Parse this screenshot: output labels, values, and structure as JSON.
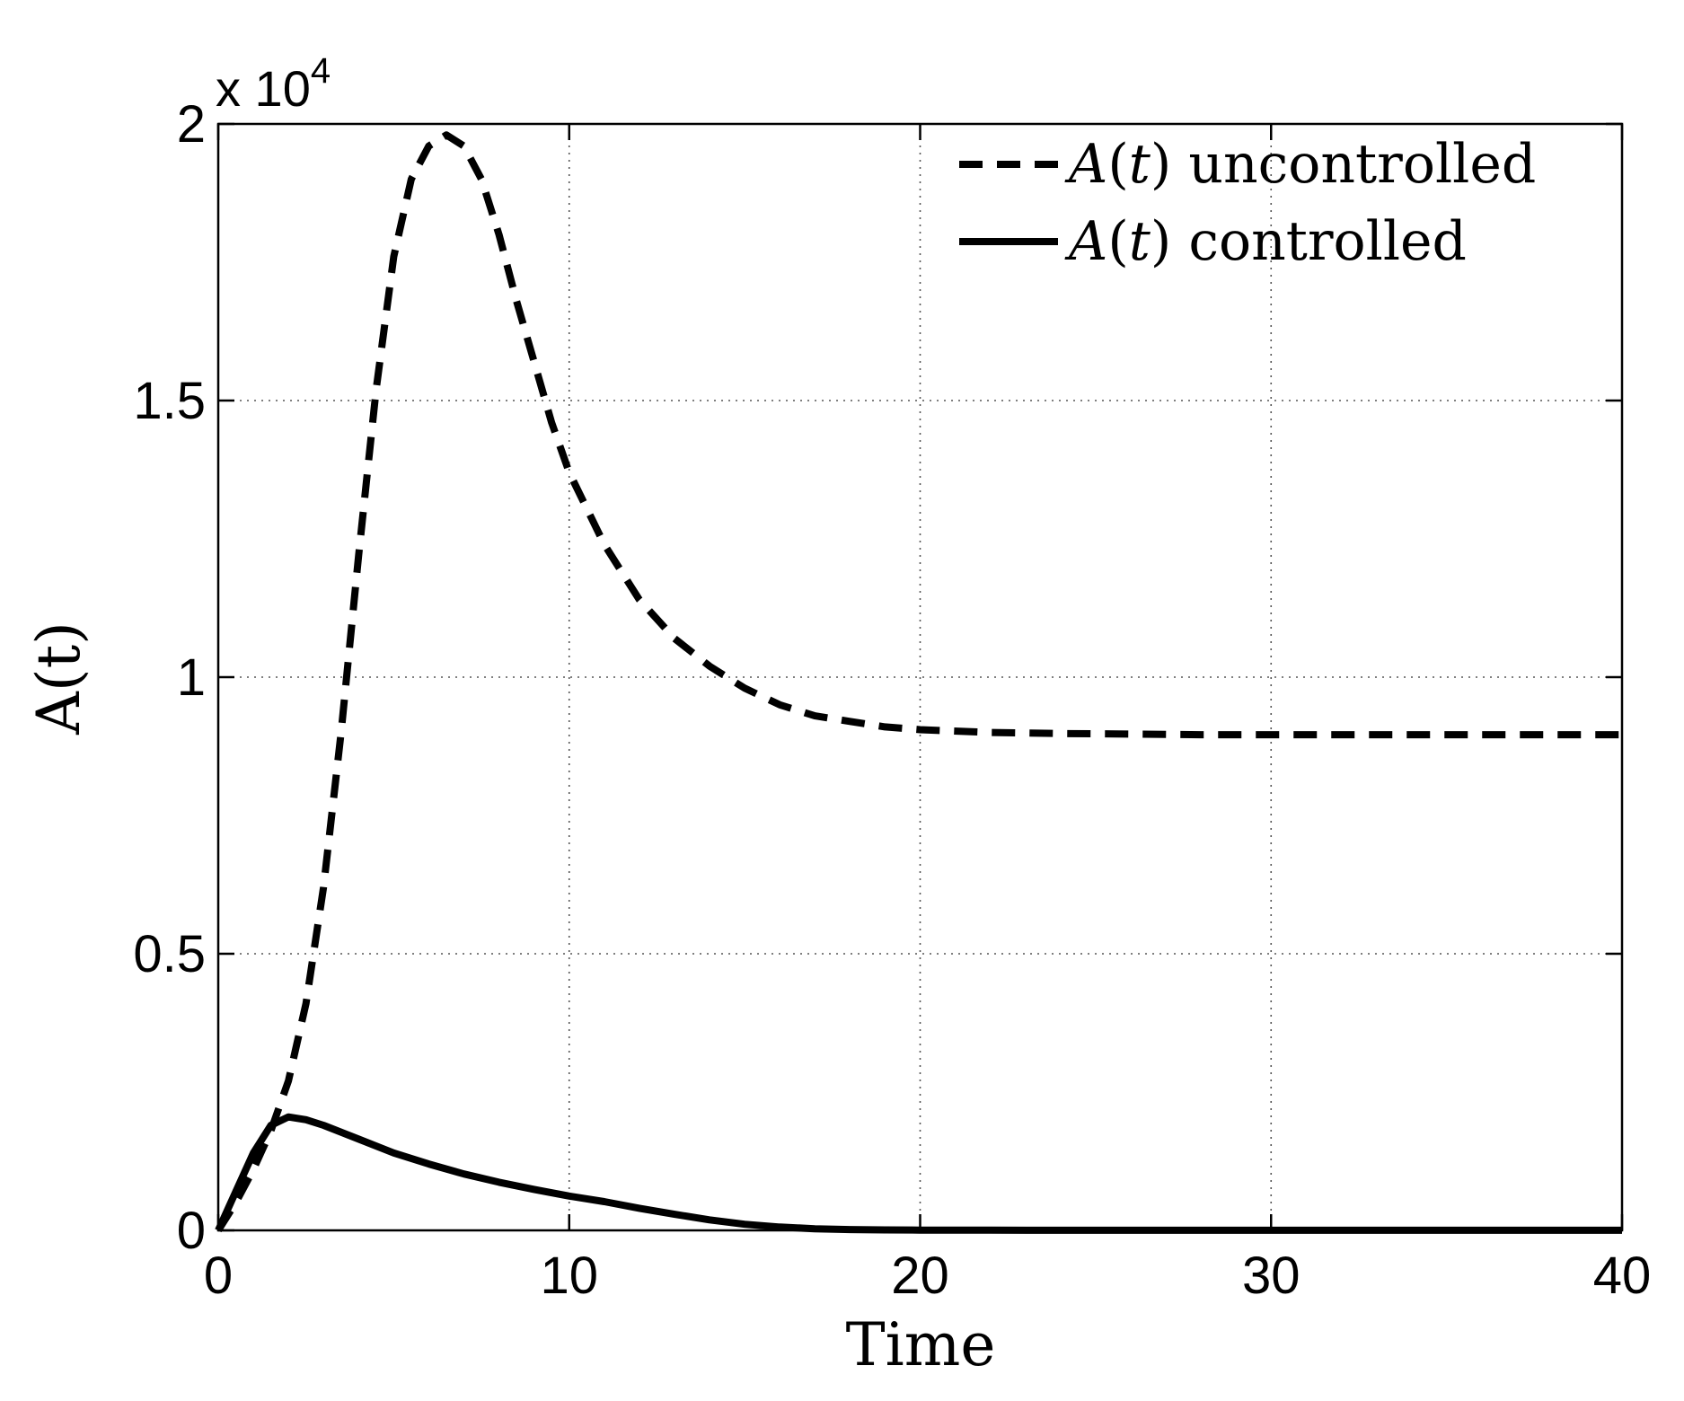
{
  "chart_data": {
    "type": "line",
    "xlabel": "Time",
    "ylabel": "A(t)",
    "xlim": [
      0,
      40
    ],
    "ylim": [
      0,
      20000
    ],
    "y_scale_note": "x 10",
    "y_scale_exponent": "4",
    "x_ticks": [
      0,
      10,
      20,
      30,
      40
    ],
    "x_tick_labels": [
      "0",
      "10",
      "20",
      "30",
      "40"
    ],
    "y_ticks": [
      0,
      5000,
      10000,
      15000,
      20000
    ],
    "y_tick_labels": [
      "0",
      "0.5",
      "1",
      "1.5",
      "2"
    ],
    "grid": true,
    "legend_position": "top-right",
    "series": [
      {
        "name": "A(t) uncontrolled",
        "name_math": "A",
        "name_arg": "t",
        "name_suffix": "uncontrolled",
        "style": "dashed",
        "color": "#000000",
        "x": [
          0,
          0.5,
          1,
          1.5,
          2,
          2.5,
          3,
          3.5,
          4,
          4.5,
          5,
          5.5,
          6,
          6.5,
          7,
          7.5,
          8,
          8.5,
          9,
          9.5,
          10,
          11,
          12,
          13,
          14,
          15,
          16,
          17,
          18,
          19,
          20,
          22,
          24,
          26,
          28,
          30,
          32,
          34,
          36,
          38,
          40
        ],
        "y": [
          0,
          500,
          1100,
          1800,
          2700,
          4100,
          6200,
          9000,
          12200,
          15200,
          17600,
          19000,
          19600,
          19800,
          19600,
          19000,
          18000,
          16800,
          15700,
          14600,
          13700,
          12400,
          11400,
          10700,
          10200,
          9800,
          9500,
          9300,
          9200,
          9100,
          9050,
          9000,
          8980,
          8970,
          8960,
          8960,
          8960,
          8960,
          8960,
          8960,
          8960
        ]
      },
      {
        "name": "A(t) controlled",
        "name_math": "A",
        "name_arg": "t",
        "name_suffix": "controlled",
        "style": "solid",
        "color": "#000000",
        "x": [
          0,
          0.5,
          1,
          1.5,
          2,
          2.5,
          3,
          4,
          5,
          6,
          7,
          8,
          9,
          10,
          11,
          12,
          13,
          14,
          15,
          16,
          17,
          18,
          19,
          20,
          22,
          24,
          26,
          28,
          30,
          32,
          34,
          36,
          38,
          40
        ],
        "y": [
          0,
          700,
          1400,
          1900,
          2050,
          2000,
          1900,
          1650,
          1400,
          1200,
          1020,
          870,
          740,
          620,
          520,
          400,
          290,
          190,
          110,
          60,
          30,
          15,
          8,
          5,
          3,
          2,
          1,
          1,
          1,
          1,
          1,
          1,
          1,
          1
        ]
      }
    ]
  }
}
